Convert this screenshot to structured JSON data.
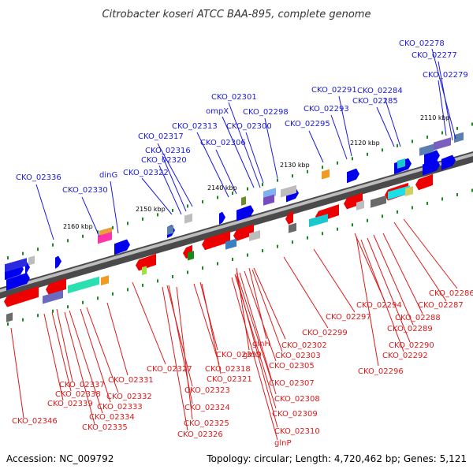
{
  "title": "Citrobacter koseri ATCC BAA-895, complete genome",
  "footer": {
    "accession": "Accession: NC_009792",
    "topology": "Topology: circular; Length: 4,720,462 bp; Genes: 5,121"
  },
  "colors": {
    "top_label": "#1a1add",
    "bottom_label": "#dd1a1a",
    "forward_gene": "#0000ee",
    "reverse_gene": "#ee0000",
    "backbone": "#555555",
    "tick": "#1a8a1a"
  },
  "ruler": [
    "2110 kbp",
    "2120 kbp",
    "2130 kbp",
    "2140 kbp",
    "2150 kbp",
    "2160 kbp"
  ],
  "top_genes": [
    "CKO_02278",
    "CKO_02277",
    "CKO_02279",
    "CKO_02284",
    "CKO_02285",
    "CKO_02291",
    "CKO_02293",
    "CKO_02295",
    "CKO_02301",
    "ompX",
    "CKO_02298",
    "CKO_02300",
    "CKO_02313",
    "CKO_02306",
    "CKO_02317",
    "CKO_02316",
    "CKO_02320",
    "CKO_02322",
    "dinG",
    "CKO_02336",
    "CKO_02330"
  ],
  "bottom_genes": [
    "CKO_02286",
    "CKO_02287",
    "CKO_02294",
    "CKO_02288",
    "CKO_02289",
    "CKO_02297",
    "CKO_02290",
    "CKO_02292",
    "CKO_02299",
    "CKO_02296",
    "glnH",
    "CKO_02302",
    "glnQ",
    "CKO_02303",
    "CKO_02305",
    "CKO_02307",
    "CKO_02308",
    "CKO_02309",
    "CKO_02310",
    "glnP",
    "CKO_02319",
    "CKO_02318",
    "CKO_02321",
    "CKO_02327",
    "CKO_02323",
    "CKO_02324",
    "CKO_02325",
    "CKO_02326",
    "CKO_02331",
    "CKO_02337",
    "CKO_02338",
    "CKO_02332",
    "CKO_02339",
    "CKO_02333",
    "CKO_02334",
    "CKO_02335",
    "CKO_02346"
  ]
}
